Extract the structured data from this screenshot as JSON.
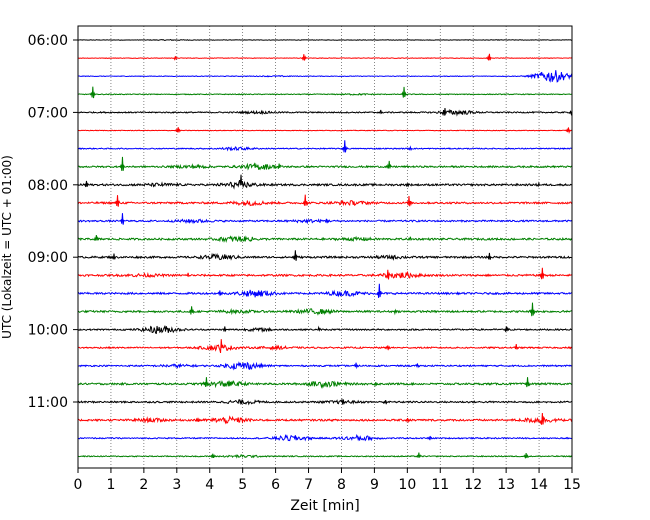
{
  "chart_data": {
    "type": "line",
    "xlabel": "Zeit  [min]",
    "ylabel": "UTC (Lokalzeit = UTC + 01:00)",
    "xlim": [
      0,
      15
    ],
    "x_ticks": [
      "0",
      "1",
      "2",
      "3",
      "4",
      "5",
      "6",
      "7",
      "8",
      "9",
      "10",
      "11",
      "12",
      "13",
      "14",
      "15"
    ],
    "y_ticks": [
      "06:00",
      "07:00",
      "08:00",
      "09:00",
      "10:00",
      "11:00"
    ],
    "grid": "vertical dotted at each minute",
    "trace_interval_min": 15,
    "trace_colors": [
      "#000000",
      "#ff0000",
      "#0000ff",
      "#008000"
    ],
    "traces": [
      {
        "start": "06:00",
        "color": "#000000",
        "spikes": [],
        "bursts": [
          [
            2.8,
            0.25
          ]
        ],
        "noise": 0.25
      },
      {
        "start": "06:15",
        "color": "#ff0000",
        "spikes": [
          [
            2.95,
            5
          ],
          [
            6.85,
            10
          ],
          [
            12.5,
            10
          ]
        ],
        "bursts": [],
        "noise": 0.3
      },
      {
        "start": "06:30",
        "color": "#0000ff",
        "spikes": [],
        "bursts": [
          [
            14.4,
            6
          ],
          [
            6,
            0.3
          ]
        ],
        "noise": 0.3
      },
      {
        "start": "06:45",
        "color": "#008000",
        "spikes": [
          [
            0.45,
            8
          ],
          [
            9.9,
            7
          ]
        ],
        "bursts": [
          [
            8.5,
            0.4
          ]
        ],
        "noise": 0.4
      },
      {
        "start": "07:00",
        "color": "#000000",
        "spikes": [
          [
            9.2,
            5
          ],
          [
            11.15,
            12
          ],
          [
            14.95,
            5
          ]
        ],
        "bursts": [
          [
            5.5,
            0.8
          ],
          [
            11.5,
            2
          ]
        ],
        "noise": 0.6
      },
      {
        "start": "07:15",
        "color": "#ff0000",
        "spikes": [
          [
            3.05,
            8
          ],
          [
            14.9,
            7
          ]
        ],
        "bursts": [],
        "noise": 0.3
      },
      {
        "start": "07:30",
        "color": "#0000ff",
        "spikes": [
          [
            8.1,
            8
          ],
          [
            10.1,
            4
          ]
        ],
        "bursts": [
          [
            4.8,
            1.2
          ]
        ],
        "noise": 0.5
      },
      {
        "start": "07:45",
        "color": "#008000",
        "spikes": [
          [
            1.35,
            9
          ],
          [
            6.1,
            8
          ],
          [
            9.45,
            6
          ]
        ],
        "bursts": [
          [
            5.5,
            2.5
          ],
          [
            3.5,
            1.2
          ]
        ],
        "noise": 0.8
      },
      {
        "start": "08:00",
        "color": "#000000",
        "spikes": [
          [
            0.25,
            9
          ],
          [
            4.95,
            8
          ],
          [
            10.0,
            5
          ],
          [
            14.0,
            4
          ]
        ],
        "bursts": [
          [
            4.9,
            2.5
          ],
          [
            2.5,
            1
          ]
        ],
        "noise": 0.9
      },
      {
        "start": "08:15",
        "color": "#ff0000",
        "spikes": [
          [
            1.2,
            8
          ],
          [
            6.9,
            8
          ],
          [
            10.05,
            6
          ]
        ],
        "bursts": [
          [
            5.2,
            1.8
          ],
          [
            8.3,
            1.5
          ]
        ],
        "noise": 0.9
      },
      {
        "start": "08:30",
        "color": "#0000ff",
        "spikes": [
          [
            1.35,
            8
          ],
          [
            7.55,
            6
          ]
        ],
        "bursts": [
          [
            3.5,
            1.2
          ],
          [
            7,
            1
          ]
        ],
        "noise": 0.8
      },
      {
        "start": "08:45",
        "color": "#008000",
        "spikes": [
          [
            0.55,
            9
          ],
          [
            5.3,
            7
          ],
          [
            10.1,
            5
          ]
        ],
        "bursts": [
          [
            4.8,
            2.2
          ],
          [
            8.5,
            1
          ]
        ],
        "noise": 0.9
      },
      {
        "start": "09:00",
        "color": "#000000",
        "spikes": [
          [
            1.1,
            7
          ],
          [
            6.6,
            7
          ],
          [
            12.5,
            9
          ]
        ],
        "bursts": [
          [
            4.3,
            2.2
          ],
          [
            9.5,
            1
          ]
        ],
        "noise": 0.9
      },
      {
        "start": "09:15",
        "color": "#ff0000",
        "spikes": [
          [
            3.35,
            5
          ],
          [
            9.4,
            9
          ],
          [
            14.1,
            8
          ]
        ],
        "bursts": [
          [
            9.8,
            2.5
          ],
          [
            2,
            1
          ]
        ],
        "noise": 0.9
      },
      {
        "start": "09:30",
        "color": "#0000ff",
        "spikes": [
          [
            4.3,
            6
          ],
          [
            9.15,
            9
          ]
        ],
        "bursts": [
          [
            5.4,
            3
          ],
          [
            8.1,
            2
          ]
        ],
        "noise": 0.9
      },
      {
        "start": "09:45",
        "color": "#008000",
        "spikes": [
          [
            3.45,
            5
          ],
          [
            9.65,
            5
          ],
          [
            13.8,
            9
          ]
        ],
        "bursts": [
          [
            7.2,
            2
          ],
          [
            4.8,
            1
          ]
        ],
        "noise": 0.9
      },
      {
        "start": "10:00",
        "color": "#000000",
        "spikes": [
          [
            4.45,
            7
          ],
          [
            7.3,
            4
          ],
          [
            13.0,
            8
          ]
        ],
        "bursts": [
          [
            2.5,
            3.5
          ],
          [
            5.5,
            1
          ]
        ],
        "noise": 0.7
      },
      {
        "start": "10:15",
        "color": "#ff0000",
        "spikes": [
          [
            4.35,
            6
          ],
          [
            9.4,
            6
          ],
          [
            13.3,
            8
          ]
        ],
        "bursts": [
          [
            4.3,
            2.5
          ],
          [
            6,
            1
          ]
        ],
        "noise": 0.7
      },
      {
        "start": "10:30",
        "color": "#0000ff",
        "spikes": [
          [
            8.45,
            6
          ],
          [
            10.3,
            4
          ]
        ],
        "bursts": [
          [
            5.0,
            3.5
          ],
          [
            3,
            1
          ]
        ],
        "noise": 0.7
      },
      {
        "start": "10:45",
        "color": "#008000",
        "spikes": [
          [
            3.9,
            6
          ],
          [
            9.05,
            5
          ],
          [
            13.65,
            7
          ]
        ],
        "bursts": [
          [
            4.5,
            2.5
          ],
          [
            7.5,
            2.5
          ]
        ],
        "noise": 0.9
      },
      {
        "start": "11:00",
        "color": "#000000",
        "spikes": [
          [
            8.05,
            6
          ],
          [
            9.35,
            5
          ]
        ],
        "bursts": [
          [
            5.0,
            1.5
          ],
          [
            8.0,
            1
          ]
        ],
        "noise": 0.8
      },
      {
        "start": "11:15",
        "color": "#ff0000",
        "spikes": [
          [
            3.65,
            6
          ],
          [
            10.0,
            5
          ],
          [
            14.1,
            8
          ]
        ],
        "bursts": [
          [
            4.6,
            2.5
          ],
          [
            2.2,
            1.2
          ],
          [
            14.0,
            2
          ]
        ],
        "noise": 0.9
      },
      {
        "start": "11:30",
        "color": "#0000ff",
        "spikes": [
          [
            8.3,
            7
          ],
          [
            10.7,
            4
          ]
        ],
        "bursts": [
          [
            6.5,
            2.5
          ],
          [
            8.5,
            2.5
          ]
        ],
        "noise": 0.6
      },
      {
        "start": "11:45",
        "color": "#008000",
        "spikes": [
          [
            4.1,
            6
          ],
          [
            10.35,
            4
          ],
          [
            13.6,
            7
          ]
        ],
        "bursts": [
          [
            5,
            1
          ]
        ],
        "noise": 0.5
      }
    ]
  }
}
